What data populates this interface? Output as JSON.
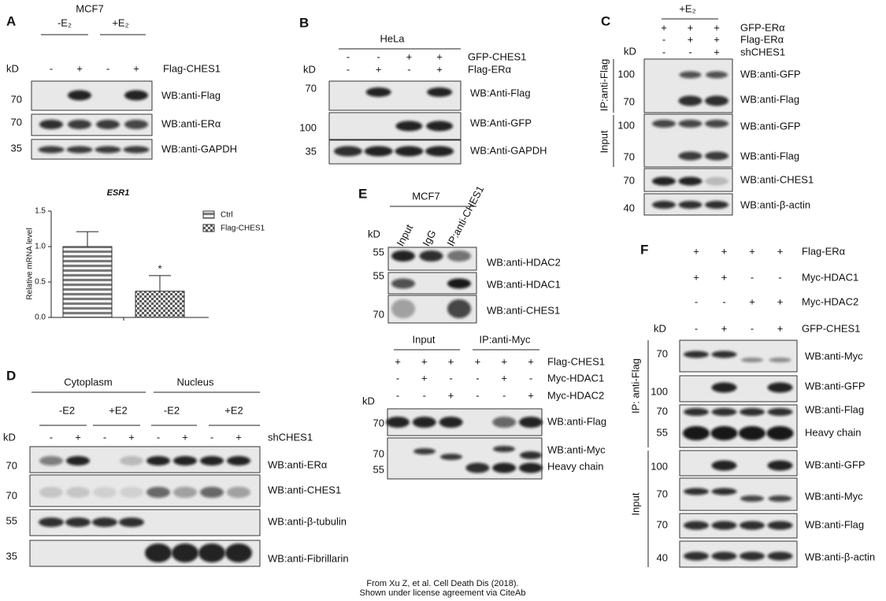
{
  "panels": {
    "a": {
      "letter": "A",
      "cell_line": "MCF7",
      "treatments": [
        "-E₂",
        "+E₂"
      ],
      "kd": "kD",
      "row_label": "Flag-CHES1",
      "row_signs": [
        "-",
        "+",
        "-",
        "+"
      ],
      "mw": [
        70,
        70,
        35
      ],
      "blots": [
        "WB:anti-Flag",
        "WB:anti-ERα",
        "WB:anti-GAPDH"
      ]
    },
    "b": {
      "letter": "B",
      "cell_line": "HeLa",
      "kd": "kD",
      "rows": [
        {
          "label": "GFP-CHES1",
          "signs": [
            "-",
            "-",
            "+",
            "+"
          ]
        },
        {
          "label": "Flag-ERα",
          "signs": [
            "-",
            "+",
            "-",
            "+"
          ]
        }
      ],
      "mw": [
        70,
        100,
        35
      ],
      "blots": [
        "WB:Anti-Flag",
        "WB:Anti-GFP",
        "WB:Anti-GAPDH"
      ]
    },
    "c": {
      "letter": "C",
      "treatment": "+E₂",
      "rows": [
        {
          "label": "GFP-ERα",
          "signs": [
            "+",
            "+",
            "+"
          ]
        },
        {
          "label": "Flag-ERα",
          "signs": [
            "-",
            "+",
            "+"
          ]
        },
        {
          "label": "shCHES1",
          "signs": [
            "-",
            "-",
            "+"
          ]
        }
      ],
      "kd": "kD",
      "groups": [
        "IP:anti-Flag",
        "Input"
      ],
      "mw": [
        100,
        70,
        100,
        70,
        70,
        40
      ],
      "blots": [
        "WB:anti-GFP",
        "WB:anti-Flag",
        "WB:anti-GFP",
        "WB:anti-Flag",
        "WB:anti-CHES1",
        "WB:anti-β-actin"
      ]
    },
    "d": {
      "letter": "D",
      "fractions": [
        "Cytoplasm",
        "Nucleus"
      ],
      "treatments": [
        "-E2",
        "+E2",
        "-E2",
        "+E2"
      ],
      "kd": "kD",
      "row_label": "shCHES1",
      "row_signs": [
        "-",
        "+",
        "-",
        "+",
        "-",
        "+",
        "-",
        "+"
      ],
      "mw": [
        70,
        70,
        55,
        35
      ],
      "blots": [
        "WB:anti-ERα",
        "WB:anti-CHES1",
        "WB:anti-β-tubulin",
        "WB:anti-Fibrillarin"
      ]
    },
    "e": {
      "letter": "E",
      "cell_line": "MCF7",
      "lanes": [
        "Input",
        "IgG",
        "IP:anti-CHES1"
      ],
      "kd": "kD",
      "mw": [
        55,
        55,
        70
      ],
      "blots": [
        "WB:anti-HDAC2",
        "WB:anti-HDAC1",
        "WB:anti-CHES1"
      ],
      "groups": [
        "Input",
        "IP:anti-Myc"
      ],
      "rows": [
        {
          "label": "Flag-CHES1",
          "signs": [
            "+",
            "+",
            "+",
            "+",
            "+",
            "+"
          ]
        },
        {
          "label": "Myc-HDAC1",
          "signs": [
            "-",
            "+",
            "-",
            "-",
            "+",
            "-"
          ]
        },
        {
          "label": "Myc-HDAC2",
          "signs": [
            "-",
            "-",
            "+",
            "-",
            "-",
            "+"
          ]
        }
      ],
      "kd2": "kD",
      "mw2": [
        70,
        70,
        55
      ],
      "blots2": [
        "WB:anti-Flag",
        "WB:anti-Myc",
        "Heavy chain"
      ]
    },
    "f": {
      "letter": "F",
      "rows": [
        {
          "label": "Flag-ERα",
          "signs": [
            "+",
            "+",
            "+",
            "+"
          ]
        },
        {
          "label": "Myc-HDAC1",
          "signs": [
            "+",
            "+",
            "-",
            "-"
          ]
        },
        {
          "label": "Myc-HDAC2",
          "signs": [
            "-",
            "-",
            "+",
            "+"
          ]
        },
        {
          "label": "GFP-CHES1",
          "signs": [
            "-",
            "+",
            "-",
            "+"
          ]
        }
      ],
      "kd": "kD",
      "groups": [
        "IP: anti-Flag",
        "Input"
      ],
      "mw": [
        70,
        100,
        70,
        55,
        100,
        70,
        70,
        40
      ],
      "blots": [
        "WB:anti-Myc",
        "WB:anti-GFP",
        "WB:anti-Flag",
        "Heavy chain",
        "WB:anti-GFP",
        "WB:anti-Myc",
        "WB:anti-Flag",
        "WB:anti-β-actin"
      ]
    }
  },
  "chart_data": {
    "type": "bar",
    "title": "ESR1",
    "y_label": "Relative mRNA level",
    "categories": [
      null
    ],
    "series": [
      {
        "name": "Ctrl",
        "color": "#7a7a7a",
        "values": [
          1.0
        ],
        "errors": [
          0.21
        ]
      },
      {
        "name": "Flag-CHES1",
        "color": "#5a5a5a",
        "values": [
          0.37
        ],
        "errors": [
          0.22
        ]
      }
    ],
    "annotations": [
      "*"
    ],
    "ylim": [
      0,
      1.5
    ],
    "yticks": [
      {
        "value": 0,
        "label": "0.0"
      },
      {
        "value": 0.5,
        "label": "0.5"
      },
      {
        "value": 1,
        "label": "1.0"
      },
      {
        "value": 1.5,
        "label": "1.5"
      }
    ],
    "grid": false
  },
  "footer": [
    "From Xu Z, et al. Cell Death Dis (2018).",
    "Shown under license agreement via CiteAb"
  ]
}
